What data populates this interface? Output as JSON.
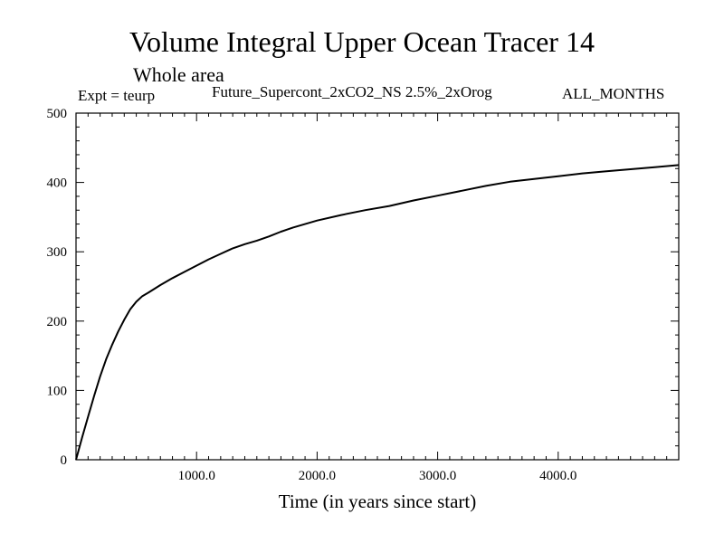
{
  "chart_data": {
    "type": "line",
    "title": "Volume Integral Upper Ocean Tracer 14",
    "subtitle": "Whole area",
    "annotations": {
      "experiment": "Expt = teurp",
      "run": "Future_Supercont_2xCO2_NS 2.5%_2xOrog",
      "period": "ALL_MONTHS"
    },
    "xlabel": "Time (in years since start)",
    "ylabel": "",
    "xlim": [
      0,
      5000
    ],
    "ylim": [
      0,
      500
    ],
    "x_ticks": [
      1000,
      2000,
      3000,
      4000
    ],
    "x_tick_labels": [
      "1000.0",
      "2000.0",
      "3000.0",
      "4000.0"
    ],
    "y_ticks": [
      0,
      100,
      200,
      300,
      400,
      500
    ],
    "y_tick_labels": [
      "0",
      "100",
      "200",
      "300",
      "400",
      "500"
    ],
    "grid": false,
    "series": [
      {
        "color": "#000000",
        "x": [
          0,
          50,
          100,
          150,
          200,
          250,
          300,
          350,
          400,
          450,
          500,
          550,
          600,
          700,
          800,
          900,
          1000,
          1100,
          1200,
          1300,
          1400,
          1500,
          1600,
          1700,
          1800,
          1900,
          2000,
          2200,
          2400,
          2600,
          2800,
          3000,
          3200,
          3400,
          3600,
          3800,
          4000,
          4200,
          4400,
          4600,
          4800,
          5000
        ],
        "y": [
          0,
          32,
          62,
          92,
          120,
          145,
          166,
          185,
          202,
          217,
          228,
          236,
          241,
          252,
          262,
          271,
          280,
          289,
          297,
          305,
          311,
          316,
          322,
          329,
          335,
          340,
          345,
          353,
          360,
          366,
          374,
          381,
          388,
          395,
          401,
          405,
          409,
          413,
          416,
          419,
          422,
          425
        ]
      }
    ]
  }
}
